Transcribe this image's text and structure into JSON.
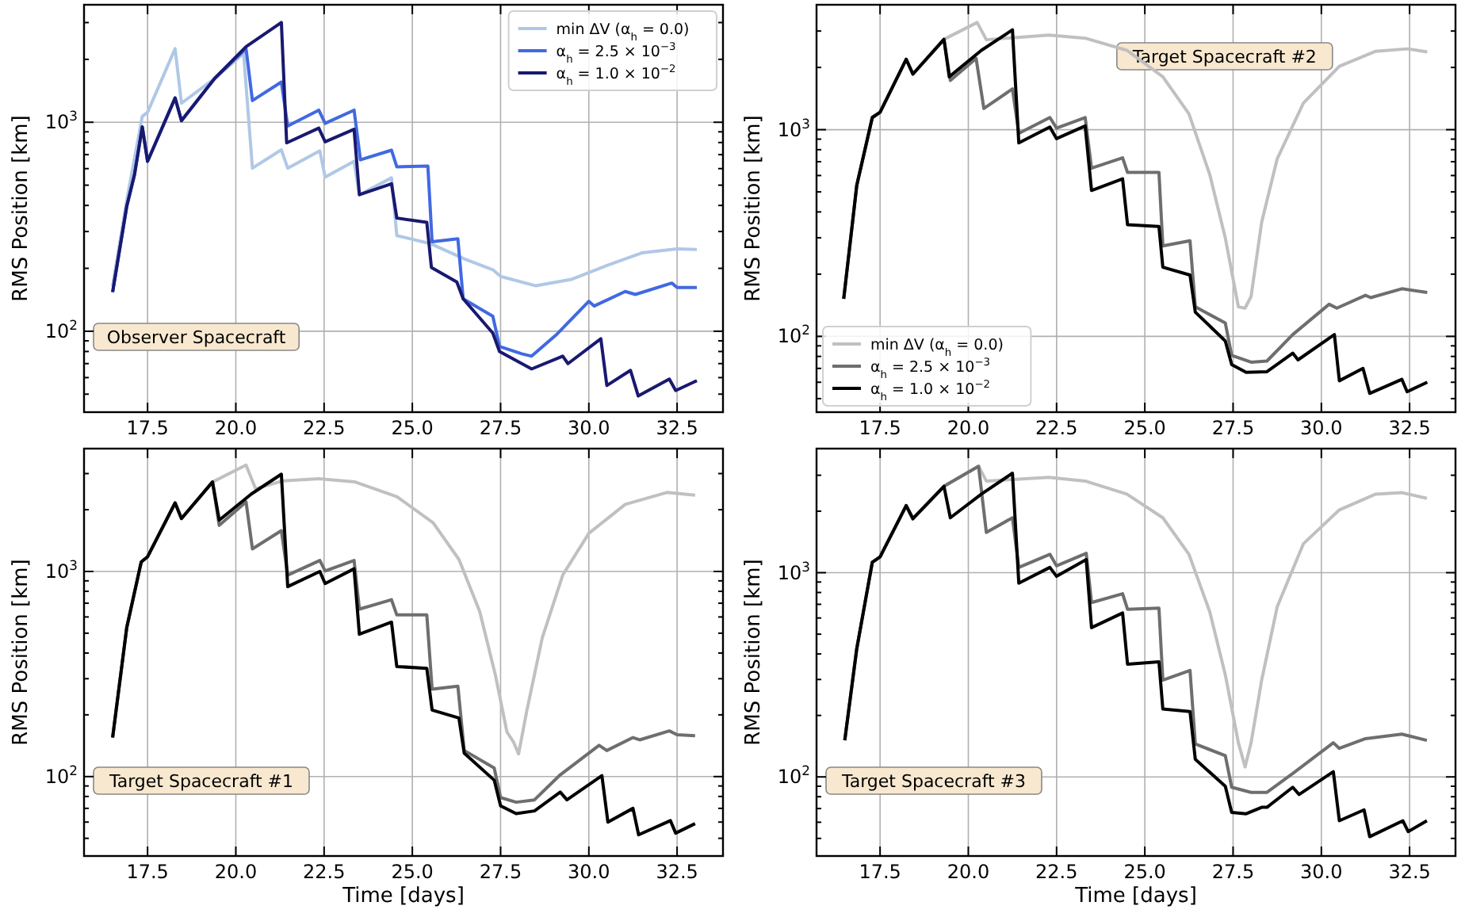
{
  "chart_data": [
    {
      "type": "line",
      "ylabel": "RMS Position [km]",
      "annotations": [
        "Observer Spacecraft"
      ],
      "xlim": [
        15.7,
        33.8
      ],
      "ylim": [
        41,
        3650
      ],
      "log": "y",
      "grid": true,
      "legend": "top right",
      "xticks": [
        17.5,
        {
          "value": 20,
          "label": "20.0"
        },
        22.5,
        {
          "value": 25,
          "label": "25.0"
        },
        27.5,
        {
          "value": 30,
          "label": "30.0"
        },
        32.5
      ],
      "yticks": [
        {
          "value": 50,
          "label": null
        },
        {
          "value": 60,
          "label": null
        },
        {
          "value": 70,
          "label": null
        },
        {
          "value": 80,
          "label": null
        },
        {
          "value": 90,
          "label": null
        },
        {
          "value": 100,
          "label": "10$^{2}$"
        },
        {
          "value": 200,
          "label": null
        },
        {
          "value": 300,
          "label": null
        },
        {
          "value": 400,
          "label": null
        },
        {
          "value": 500,
          "label": null
        },
        {
          "value": 600,
          "label": null
        },
        {
          "value": 700,
          "label": null
        },
        {
          "value": 800,
          "label": null
        },
        {
          "value": 900,
          "label": null
        },
        {
          "value": 1000,
          "label": "10$^{3}$"
        },
        {
          "value": 2000,
          "label": null
        },
        {
          "value": 3000,
          "label": null
        }
      ],
      "series": [
        {
          "name": "min ΔV (α$_{h}$ = 0.0)",
          "color": "#b0c8e6",
          "x": [
            16.51,
            16.91,
            17.35,
            17.5,
            18.28,
            18.46,
            19.4,
            20.22,
            20.47,
            21.29,
            21.47,
            22.38,
            22.53,
            23.35,
            23.5,
            24.41,
            24.56,
            25.5,
            26.5,
            27.28,
            27.5,
            28.5,
            29.5,
            30.5,
            31.5,
            32.5,
            33.06
          ],
          "values": [
            165,
            423,
            1066,
            1117,
            2250,
            1233,
            1620,
            2140,
            603,
            738,
            603,
            730,
            546,
            650,
            450,
            542,
            287,
            263,
            221,
            197,
            183,
            165,
            177,
            206,
            237,
            248,
            246
          ]
        },
        {
          "name": "α$_{h}$ = 2.5 × 10$^{−3}$",
          "color": "#4169e1",
          "x": [
            16.51,
            16.91,
            17.13,
            17.35,
            17.5,
            18.28,
            18.46,
            19.4,
            20.29,
            20.47,
            21.29,
            21.47,
            22.35,
            22.53,
            23.35,
            23.53,
            24.41,
            24.56,
            25.44,
            25.56,
            26.29,
            26.44,
            27.28,
            27.47,
            28.1,
            28.38,
            29.1,
            30.0,
            30.15,
            31.03,
            31.32,
            32.35,
            32.5,
            33.06
          ],
          "values": [
            154,
            396,
            562,
            950,
            650,
            1307,
            1017,
            1620,
            2250,
            1270,
            1557,
            960,
            1143,
            988,
            1143,
            661,
            735,
            612,
            617,
            268,
            277,
            143,
            118,
            84.5,
            78,
            76,
            97,
            139,
            132,
            155,
            150,
            170,
            162,
            162
          ]
        },
        {
          "name": "α$_{h}$ = 1.0 × 10$^{−2}$",
          "color": "#191970",
          "x": [
            16.51,
            16.91,
            17.13,
            17.35,
            17.5,
            18.28,
            18.46,
            19.4,
            20.29,
            21.29,
            21.44,
            22.35,
            22.53,
            23.35,
            23.5,
            24.41,
            24.56,
            25.41,
            25.54,
            26.26,
            26.44,
            27.28,
            27.47,
            28.38,
            29.26,
            29.41,
            30.34,
            30.51,
            31.18,
            31.4,
            32.28,
            32.46,
            33.06
          ],
          "values": [
            154,
            396,
            562,
            950,
            650,
            1307,
            1017,
            1620,
            2300,
            3000,
            797,
            938,
            806,
            926,
            450,
            508,
            348,
            332,
            202,
            172,
            143,
            98,
            80,
            66,
            76,
            70,
            92,
            55,
            65,
            49,
            59,
            52,
            58
          ]
        }
      ]
    },
    {
      "type": "line",
      "ylabel": "RMS Position [km]",
      "annotations": [
        "Target Spacecraft #2"
      ],
      "xlim": [
        15.7,
        33.8
      ],
      "ylim": [
        43,
        4020
      ],
      "log": "y",
      "grid": true,
      "legend": "bottom left",
      "xticks": [
        17.5,
        {
          "value": 20,
          "label": "20.0"
        },
        22.5,
        {
          "value": 25,
          "label": "25.0"
        },
        27.5,
        {
          "value": 30,
          "label": "30.0"
        },
        32.5
      ],
      "yticks": [
        {
          "value": 50,
          "label": null
        },
        {
          "value": 60,
          "label": null
        },
        {
          "value": 70,
          "label": null
        },
        {
          "value": 80,
          "label": null
        },
        {
          "value": 90,
          "label": null
        },
        {
          "value": 100,
          "label": "10$^{2}$"
        },
        {
          "value": 200,
          "label": null
        },
        {
          "value": 300,
          "label": null
        },
        {
          "value": 400,
          "label": null
        },
        {
          "value": 500,
          "label": null
        },
        {
          "value": 600,
          "label": null
        },
        {
          "value": 700,
          "label": null
        },
        {
          "value": 800,
          "label": null
        },
        {
          "value": 900,
          "label": null
        },
        {
          "value": 1000,
          "label": "10$^{3}$"
        },
        {
          "value": 2000,
          "label": null
        },
        {
          "value": 3000,
          "label": null
        }
      ],
      "series": [
        {
          "name": "min ΔV (α$_{h}$ = 0.0)",
          "color": "#c0c0c0",
          "x": [
            16.47,
            16.84,
            17.28,
            17.5,
            18.24,
            18.43,
            19.31,
            20.25,
            20.51,
            21.54,
            22.28,
            23.31,
            24.49,
            25.51,
            26.25,
            26.84,
            27.28,
            27.65,
            27.84,
            28.01,
            28.31,
            28.75,
            29.49,
            30.51,
            31.54,
            32.43,
            33.0
          ],
          "values": [
            152,
            538,
            1145,
            1215,
            2190,
            1857,
            2735,
            3300,
            2723,
            2806,
            2870,
            2770,
            2420,
            1802,
            1193,
            606,
            299,
            139,
            137,
            156,
            357,
            723,
            1343,
            2027,
            2394,
            2460,
            2377
          ]
        },
        {
          "name": "α$_{h}$ = 2.5 × 10$^{−3}$",
          "color": "#6e6e6e",
          "x": [
            16.47,
            16.84,
            17.28,
            17.5,
            18.24,
            18.43,
            19.31,
            19.49,
            20.22,
            20.44,
            21.25,
            21.43,
            22.31,
            22.5,
            23.31,
            23.49,
            24.37,
            24.51,
            25.4,
            25.51,
            26.28,
            26.43,
            27.28,
            27.46,
            28.01,
            28.46,
            29.19,
            30.22,
            30.44,
            31.25,
            31.4,
            32.28,
            33.0
          ],
          "values": [
            152,
            538,
            1145,
            1215,
            2190,
            1857,
            2735,
            1730,
            2213,
            1266,
            1574,
            960,
            1145,
            1018,
            1145,
            651,
            731,
            621,
            621,
            274,
            290,
            139,
            116,
            81,
            75,
            76,
            102,
            143,
            137,
            158,
            154,
            170,
            163
          ]
        },
        {
          "name": "α$_{h}$ = 1.0 × 10$^{−2}$",
          "color": "#000000",
          "x": [
            16.47,
            16.84,
            17.28,
            17.5,
            18.24,
            18.43,
            19.31,
            19.46,
            20.37,
            21.25,
            21.43,
            22.31,
            22.5,
            23.31,
            23.49,
            24.37,
            24.51,
            25.4,
            25.51,
            26.28,
            26.43,
            27.28,
            27.46,
            27.87,
            28.46,
            29.19,
            29.34,
            30.37,
            30.51,
            31.18,
            31.37,
            32.28,
            32.43,
            33.0
          ],
          "values": [
            152,
            538,
            1145,
            1215,
            2190,
            1857,
            2735,
            1802,
            2420,
            3040,
            863,
            1030,
            905,
            1042,
            508,
            578,
            347,
            340,
            216,
            198,
            131,
            95,
            73,
            67,
            67.5,
            83,
            77,
            102,
            61,
            70,
            53,
            62,
            54,
            60
          ]
        }
      ]
    },
    {
      "type": "line",
      "xlabel": "Time [days]",
      "ylabel": "RMS Position [km]",
      "annotations": [
        "Target Spacecraft #1"
      ],
      "xlim": [
        15.7,
        33.8
      ],
      "ylim": [
        41,
        3970
      ],
      "log": "y",
      "grid": true,
      "xticks": [
        17.5,
        {
          "value": 20,
          "label": "20.0"
        },
        22.5,
        {
          "value": 25,
          "label": "25.0"
        },
        27.5,
        {
          "value": 30,
          "label": "30.0"
        },
        32.5
      ],
      "yticks": [
        {
          "value": 50,
          "label": null
        },
        {
          "value": 60,
          "label": null
        },
        {
          "value": 70,
          "label": null
        },
        {
          "value": 80,
          "label": null
        },
        {
          "value": 90,
          "label": null
        },
        {
          "value": 100,
          "label": "10$^{2}$"
        },
        {
          "value": 200,
          "label": null
        },
        {
          "value": 300,
          "label": null
        },
        {
          "value": 400,
          "label": null
        },
        {
          "value": 500,
          "label": null
        },
        {
          "value": 600,
          "label": null
        },
        {
          "value": 700,
          "label": null
        },
        {
          "value": 800,
          "label": null
        },
        {
          "value": 900,
          "label": null
        },
        {
          "value": 1000,
          "label": "10$^{3}$"
        },
        {
          "value": 2000,
          "label": null
        },
        {
          "value": 3000,
          "label": null
        }
      ],
      "series": [
        {
          "color": "#c0c0c0",
          "x": [
            16.51,
            16.91,
            17.32,
            17.5,
            18.28,
            18.46,
            19.34,
            20.29,
            20.56,
            21.32,
            22.35,
            23.38,
            24.56,
            25.59,
            26.32,
            26.91,
            27.35,
            27.68,
            27.87,
            28.01,
            28.24,
            28.68,
            29.26,
            30.0,
            31.03,
            32.21,
            33.01
          ],
          "values": [
            155,
            533,
            1112,
            1179,
            2158,
            1811,
            2730,
            3300,
            2530,
            2760,
            2830,
            2730,
            2317,
            1727,
            1145,
            637,
            314,
            165,
            147,
            129,
            208,
            474,
            960,
            1534,
            2122,
            2427,
            2355
          ]
        },
        {
          "color": "#6e6e6e",
          "x": [
            16.51,
            16.91,
            17.32,
            17.5,
            18.28,
            18.46,
            19.34,
            19.53,
            20.29,
            20.47,
            21.29,
            21.47,
            22.38,
            22.53,
            23.35,
            23.5,
            24.41,
            24.56,
            25.41,
            25.56,
            26.29,
            26.47,
            27.32,
            27.5,
            27.94,
            28.46,
            29.19,
            30.29,
            30.51,
            31.25,
            31.44,
            32.28,
            32.5,
            33.01
          ],
          "values": [
            155,
            533,
            1112,
            1179,
            2158,
            1811,
            2730,
            1677,
            2183,
            1288,
            1581,
            960,
            1131,
            1006,
            1131,
            655,
            728,
            614,
            614,
            267,
            276,
            134,
            110,
            79,
            75,
            77,
            102,
            142,
            134,
            155,
            151,
            167,
            160,
            158
          ]
        },
        {
          "color": "#000000",
          "x": [
            16.51,
            16.91,
            17.32,
            17.5,
            18.28,
            18.46,
            19.34,
            19.53,
            20.44,
            21.29,
            21.47,
            22.38,
            22.53,
            23.35,
            23.5,
            24.41,
            24.56,
            25.41,
            25.56,
            26.32,
            26.47,
            27.32,
            27.5,
            27.94,
            28.46,
            29.19,
            29.38,
            30.37,
            30.54,
            31.25,
            31.41,
            32.31,
            32.46,
            33.01
          ],
          "values": [
            155,
            533,
            1112,
            1179,
            2158,
            1811,
            2730,
            1778,
            2386,
            2980,
            843,
            1000,
            873,
            1030,
            494,
            566,
            344,
            337,
            211,
            193,
            130,
            96,
            72,
            66,
            68,
            84,
            77,
            101,
            60,
            70,
            52,
            61,
            53,
            59
          ]
        }
      ]
    },
    {
      "type": "line",
      "xlabel": "Time [days]",
      "ylabel": "RMS Position [km]",
      "annotations": [
        "Target Spacecraft #3"
      ],
      "xlim": [
        15.7,
        33.8
      ],
      "ylim": [
        41,
        4050
      ],
      "log": "y",
      "grid": true,
      "xticks": [
        17.5,
        {
          "value": 20,
          "label": "20.0"
        },
        22.5,
        {
          "value": 25,
          "label": "25.0"
        },
        27.5,
        {
          "value": 30,
          "label": "30.0"
        },
        32.5
      ],
      "yticks": [
        {
          "value": 50,
          "label": null
        },
        {
          "value": 60,
          "label": null
        },
        {
          "value": 70,
          "label": null
        },
        {
          "value": 80,
          "label": null
        },
        {
          "value": 90,
          "label": null
        },
        {
          "value": 100,
          "label": "10$^{2}$"
        },
        {
          "value": 200,
          "label": null
        },
        {
          "value": 300,
          "label": null
        },
        {
          "value": 400,
          "label": null
        },
        {
          "value": 500,
          "label": null
        },
        {
          "value": 600,
          "label": null
        },
        {
          "value": 700,
          "label": null
        },
        {
          "value": 800,
          "label": null
        },
        {
          "value": 900,
          "label": null
        },
        {
          "value": 1000,
          "label": "10$^{3}$"
        },
        {
          "value": 2000,
          "label": null
        },
        {
          "value": 3000,
          "label": null
        }
      ],
      "series": [
        {
          "color": "#c0c0c0",
          "x": [
            16.5,
            16.84,
            17.28,
            17.5,
            18.24,
            18.43,
            19.31,
            20.29,
            20.51,
            21.25,
            22.28,
            23.31,
            24.49,
            25.51,
            26.25,
            26.84,
            27.28,
            27.65,
            27.84,
            28.01,
            28.31,
            28.75,
            29.49,
            30.51,
            31.54,
            32.28,
            32.99
          ],
          "values": [
            151,
            425,
            1125,
            1194,
            2130,
            1837,
            2648,
            3320,
            2810,
            2860,
            2930,
            2810,
            2425,
            1857,
            1230,
            643,
            316,
            147,
            112,
            147,
            298,
            681,
            1384,
            2030,
            2425,
            2465,
            2312
          ]
        },
        {
          "color": "#6e6e6e",
          "x": [
            16.5,
            16.84,
            17.28,
            17.5,
            18.24,
            18.43,
            19.31,
            20.29,
            20.51,
            21.25,
            21.43,
            22.31,
            22.5,
            23.34,
            23.49,
            24.37,
            24.51,
            25.4,
            25.51,
            26.28,
            26.43,
            27.28,
            27.46,
            28.01,
            28.46,
            29.19,
            30.34,
            30.51,
            31.25,
            32.28,
            32.99
          ],
          "values": [
            151,
            425,
            1125,
            1194,
            2130,
            1837,
            2648,
            3320,
            1575,
            1857,
            1061,
            1230,
            1080,
            1244,
            714,
            789,
            662,
            670,
            298,
            332,
            145,
            127,
            89,
            84,
            84,
            104,
            147,
            138,
            154,
            162,
            151
          ]
        },
        {
          "color": "#000000",
          "x": [
            16.5,
            16.84,
            17.28,
            17.5,
            18.24,
            18.43,
            19.31,
            19.49,
            20.37,
            21.25,
            21.43,
            22.31,
            22.5,
            23.34,
            23.49,
            24.37,
            24.51,
            25.4,
            25.51,
            26.28,
            26.43,
            27.28,
            27.46,
            27.87,
            28.31,
            28.46,
            29.19,
            29.37,
            30.34,
            30.51,
            31.21,
            31.37,
            32.31,
            32.46,
            32.99
          ],
          "values": [
            151,
            425,
            1125,
            1194,
            2130,
            1837,
            2648,
            1857,
            2425,
            3070,
            889,
            1061,
            960,
            1159,
            538,
            635,
            356,
            366,
            215,
            209,
            122,
            90,
            67,
            66,
            71,
            71,
            89,
            82,
            106,
            61,
            69,
            51,
            61,
            54,
            61
          ]
        }
      ]
    }
  ]
}
